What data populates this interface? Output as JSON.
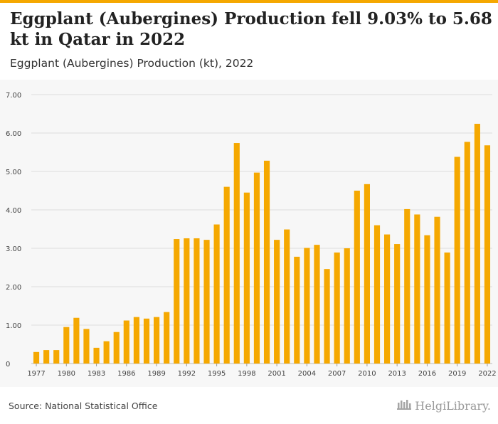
{
  "header": {
    "title": "Eggplant (Aubergines) Production fell 9.03% to 5.68 kt in Qatar in 2022",
    "subtitle": "Eggplant (Aubergines) Production (kt), 2022"
  },
  "footer": {
    "source": "Source: National Statistical Office",
    "brand": "HelgiLibrary."
  },
  "colors": {
    "accent": "#f5a800",
    "bar": "#f5a800",
    "grid": "#dddddd"
  },
  "chart_data": {
    "type": "bar",
    "title": "Eggplant (Aubergines) Production (kt), 2022",
    "xlabel": "",
    "ylabel": "",
    "ylim": [
      0,
      7
    ],
    "yticks": [
      "0",
      "1.00",
      "2.00",
      "3.00",
      "4.00",
      "5.00",
      "6.00",
      "7.00"
    ],
    "xtick_labels": [
      "1977",
      "1980",
      "1983",
      "1986",
      "1989",
      "1992",
      "1995",
      "1998",
      "2001",
      "2004",
      "2007",
      "2010",
      "2013",
      "2016",
      "2019",
      "2022"
    ],
    "grid": true,
    "categories": [
      "1977",
      "1978",
      "1979",
      "1980",
      "1981",
      "1982",
      "1983",
      "1984",
      "1985",
      "1986",
      "1987",
      "1988",
      "1989",
      "1990",
      "1991",
      "1992",
      "1993",
      "1994",
      "1995",
      "1996",
      "1997",
      "1998",
      "1999",
      "2000",
      "2001",
      "2002",
      "2003",
      "2004",
      "2005",
      "2006",
      "2007",
      "2008",
      "2009",
      "2010",
      "2011",
      "2012",
      "2013",
      "2014",
      "2015",
      "2016",
      "2017",
      "2018",
      "2019",
      "2020",
      "2021",
      "2022"
    ],
    "values": [
      0.3,
      0.35,
      0.35,
      0.95,
      1.19,
      0.9,
      0.41,
      0.58,
      0.82,
      1.12,
      1.21,
      1.17,
      1.21,
      1.34,
      3.24,
      3.26,
      3.26,
      3.22,
      3.62,
      4.6,
      5.74,
      4.45,
      4.97,
      5.28,
      3.22,
      3.49,
      2.78,
      3.01,
      3.09,
      2.46,
      2.89,
      3.0,
      4.5,
      4.67,
      3.6,
      3.36,
      3.11,
      4.02,
      3.88,
      3.34,
      3.82,
      2.89,
      5.38,
      5.77,
      6.24,
      5.68
    ]
  }
}
